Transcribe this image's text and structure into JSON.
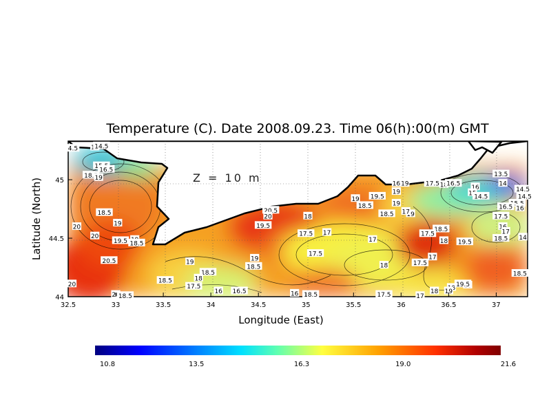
{
  "title": "Temperature (C). Date 2008.09.23. Time 06(h):00(m) GMT",
  "depth_label": "Z = 10 m",
  "x_axis_label": "Longitude (East)",
  "y_axis_label": "Latitude (North)",
  "x_ticks": [
    "32.5",
    "33",
    "33.5",
    "34",
    "34.5",
    "35",
    "35.5",
    "36",
    "36.5",
    "37"
  ],
  "y_ticks": [
    "44",
    "44.5",
    "45"
  ],
  "colorbar_ticks": [
    "10.8",
    "13.5",
    "16.3",
    "19.0",
    "21.6"
  ],
  "colorbar_colors": [
    "#000080",
    "#0000ff",
    "#0080ff",
    "#00e0ff",
    "#60ffb0",
    "#ffff40",
    "#ffa000",
    "#ff3000",
    "#b00000",
    "#800000"
  ],
  "chart_data": {
    "type": "heatmap",
    "title": "Temperature (C). Date 2008.09.23. Time 06(h):00(m) GMT",
    "xlabel": "Longitude (East)",
    "ylabel": "Latitude (North)",
    "xlim": [
      32.5,
      37.33
    ],
    "ylim": [
      44,
      45.33
    ],
    "depth": "Z = 10 m",
    "value_range": [
      10.8,
      21.6
    ],
    "grid": "dotted",
    "colorbar_ticks": [
      10.8,
      13.5,
      16.3,
      19.0,
      21.6
    ],
    "contour_labels": [
      {
        "lon": 32.55,
        "lat": 45.27,
        "value": "4.5"
      },
      {
        "lon": 32.78,
        "lat": 45.28,
        "value": "15"
      },
      {
        "lon": 32.85,
        "lat": 45.29,
        "value": "14.5"
      },
      {
        "lon": 32.85,
        "lat": 45.12,
        "value": "15.5"
      },
      {
        "lon": 32.9,
        "lat": 45.09,
        "value": "16.5"
      },
      {
        "lon": 32.74,
        "lat": 45.04,
        "value": "18.5"
      },
      {
        "lon": 32.82,
        "lat": 45.02,
        "value": "19"
      },
      {
        "lon": 32.88,
        "lat": 44.72,
        "value": "18.5"
      },
      {
        "lon": 33.02,
        "lat": 44.63,
        "value": "19"
      },
      {
        "lon": 32.59,
        "lat": 44.6,
        "value": "20"
      },
      {
        "lon": 32.78,
        "lat": 44.52,
        "value": "20"
      },
      {
        "lon": 33.05,
        "lat": 44.48,
        "value": "19.5"
      },
      {
        "lon": 33.2,
        "lat": 44.49,
        "value": "19"
      },
      {
        "lon": 33.22,
        "lat": 44.46,
        "value": "18.5"
      },
      {
        "lon": 32.93,
        "lat": 44.31,
        "value": "20.5"
      },
      {
        "lon": 32.54,
        "lat": 44.11,
        "value": "20"
      },
      {
        "lon": 33.0,
        "lat": 44.02,
        "value": "20"
      },
      {
        "lon": 33.1,
        "lat": 44.01,
        "value": "18.5"
      },
      {
        "lon": 33.78,
        "lat": 44.3,
        "value": "19"
      },
      {
        "lon": 33.97,
        "lat": 44.21,
        "value": "18.5"
      },
      {
        "lon": 33.52,
        "lat": 44.14,
        "value": "18.5"
      },
      {
        "lon": 33.87,
        "lat": 44.16,
        "value": "18"
      },
      {
        "lon": 33.82,
        "lat": 44.09,
        "value": "17.5"
      },
      {
        "lon": 34.08,
        "lat": 44.05,
        "value": "16"
      },
      {
        "lon": 34.3,
        "lat": 44.05,
        "value": "16.5"
      },
      {
        "lon": 34.46,
        "lat": 44.33,
        "value": "19"
      },
      {
        "lon": 34.45,
        "lat": 44.26,
        "value": "18.5"
      },
      {
        "lon": 34.63,
        "lat": 44.74,
        "value": "20.5"
      },
      {
        "lon": 34.6,
        "lat": 44.69,
        "value": "20"
      },
      {
        "lon": 34.55,
        "lat": 44.61,
        "value": "19.5"
      },
      {
        "lon": 35.02,
        "lat": 44.69,
        "value": "18"
      },
      {
        "lon": 35.0,
        "lat": 44.54,
        "value": "17.5"
      },
      {
        "lon": 35.22,
        "lat": 44.55,
        "value": "17"
      },
      {
        "lon": 35.1,
        "lat": 44.37,
        "value": "17.5"
      },
      {
        "lon": 35.7,
        "lat": 44.49,
        "value": "17"
      },
      {
        "lon": 35.82,
        "lat": 44.27,
        "value": "18"
      },
      {
        "lon": 34.88,
        "lat": 44.03,
        "value": "16"
      },
      {
        "lon": 35.05,
        "lat": 44.02,
        "value": "18.5"
      },
      {
        "lon": 35.52,
        "lat": 44.84,
        "value": "19"
      },
      {
        "lon": 35.75,
        "lat": 44.86,
        "value": "19.5"
      },
      {
        "lon": 35.95,
        "lat": 44.9,
        "value": "19"
      },
      {
        "lon": 35.62,
        "lat": 44.78,
        "value": "18.5"
      },
      {
        "lon": 35.95,
        "lat": 44.8,
        "value": "19"
      },
      {
        "lon": 35.85,
        "lat": 44.71,
        "value": "18.5"
      },
      {
        "lon": 36.1,
        "lat": 44.71,
        "value": "19"
      },
      {
        "lon": 35.95,
        "lat": 44.97,
        "value": "16"
      },
      {
        "lon": 36.04,
        "lat": 44.97,
        "value": "19"
      },
      {
        "lon": 36.33,
        "lat": 44.97,
        "value": "17.5"
      },
      {
        "lon": 36.45,
        "lat": 44.96,
        "value": "18"
      },
      {
        "lon": 36.55,
        "lat": 44.97,
        "value": "16.5"
      },
      {
        "lon": 36.78,
        "lat": 44.94,
        "value": "16"
      },
      {
        "lon": 36.75,
        "lat": 44.89,
        "value": "15"
      },
      {
        "lon": 36.84,
        "lat": 44.86,
        "value": "14.5"
      },
      {
        "lon": 37.05,
        "lat": 45.05,
        "value": "13.5"
      },
      {
        "lon": 37.07,
        "lat": 44.97,
        "value": "14"
      },
      {
        "lon": 37.28,
        "lat": 44.92,
        "value": "14.5"
      },
      {
        "lon": 37.3,
        "lat": 44.86,
        "value": "14.5"
      },
      {
        "lon": 37.22,
        "lat": 44.8,
        "value": "15.5"
      },
      {
        "lon": 37.1,
        "lat": 44.77,
        "value": "16.5"
      },
      {
        "lon": 37.25,
        "lat": 44.76,
        "value": "16"
      },
      {
        "lon": 37.05,
        "lat": 44.69,
        "value": "17.5"
      },
      {
        "lon": 37.07,
        "lat": 44.6,
        "value": "16"
      },
      {
        "lon": 37.1,
        "lat": 44.56,
        "value": "17"
      },
      {
        "lon": 37.05,
        "lat": 44.5,
        "value": "18.5"
      },
      {
        "lon": 36.42,
        "lat": 44.58,
        "value": "18.5"
      },
      {
        "lon": 36.45,
        "lat": 44.48,
        "value": "18"
      },
      {
        "lon": 36.67,
        "lat": 44.47,
        "value": "19.5"
      },
      {
        "lon": 36.33,
        "lat": 44.34,
        "value": "17"
      },
      {
        "lon": 36.2,
        "lat": 44.29,
        "value": "17.5"
      },
      {
        "lon": 36.05,
        "lat": 44.73,
        "value": "17"
      },
      {
        "lon": 36.28,
        "lat": 44.54,
        "value": "17.5"
      },
      {
        "lon": 37.28,
        "lat": 44.51,
        "value": "14"
      },
      {
        "lon": 37.25,
        "lat": 44.2,
        "value": "18.5"
      },
      {
        "lon": 36.53,
        "lat": 44.08,
        "value": "18"
      },
      {
        "lon": 36.35,
        "lat": 44.05,
        "value": "18"
      },
      {
        "lon": 36.5,
        "lat": 44.05,
        "value": "19"
      },
      {
        "lon": 36.7,
        "lat": 44.1,
        "value": "18"
      },
      {
        "lon": 36.65,
        "lat": 44.11,
        "value": "19.5"
      },
      {
        "lon": 35.82,
        "lat": 44.02,
        "value": "17.5"
      },
      {
        "lon": 36.2,
        "lat": 44.01,
        "value": "17"
      }
    ]
  }
}
